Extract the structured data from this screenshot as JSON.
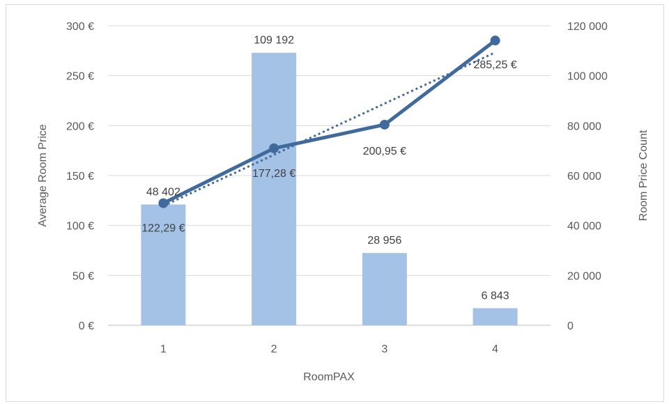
{
  "chart_data": {
    "type": "bar",
    "categories": [
      "1",
      "2",
      "3",
      "4"
    ],
    "bar_series": {
      "values": [
        48402,
        109192,
        28956,
        6843
      ],
      "labels": [
        "48 402",
        "109 192",
        "28 956",
        "6 843"
      ],
      "axis": "secondary",
      "color": "#a4c2e6"
    },
    "line_series": {
      "values": [
        122.29,
        177.28,
        200.95,
        285.25
      ],
      "labels": [
        "122,29 €",
        "177,28 €",
        "200,95 €",
        "285,25 €"
      ],
      "axis": "primary",
      "color": "#40699c"
    },
    "trendline": {
      "style": "dotted",
      "color": "#40699c"
    },
    "xlabel": "RoomPAX",
    "ylabel": "Average Room Price",
    "y2label": "Room Price Count",
    "ylim": [
      0,
      300
    ],
    "y2lim": [
      0,
      120000
    ],
    "yticks": [
      "0 €",
      "50 €",
      "100 €",
      "150 €",
      "200 €",
      "250 €",
      "300 €"
    ],
    "y2ticks": [
      "0",
      "20 000",
      "40 000",
      "60 000",
      "80 000",
      "100 000",
      "120 000"
    ],
    "grid": true,
    "legend": "none"
  }
}
